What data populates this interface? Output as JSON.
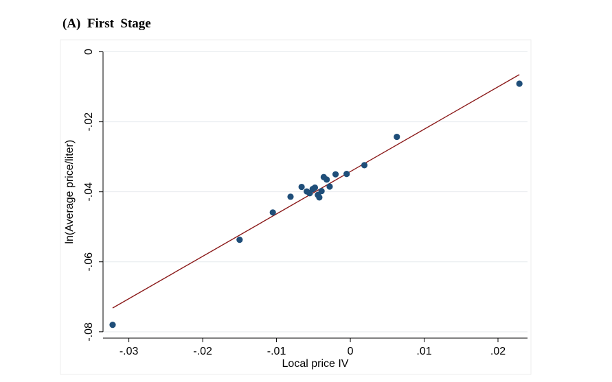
{
  "panel": {
    "title": "(A)  First  Stage"
  },
  "chart_data": {
    "type": "scatter",
    "title": "(A)  First  Stage",
    "xlabel": "Local price IV",
    "ylabel": "ln(Average price/liter)",
    "xlim": [
      -0.0335,
      0.024
    ],
    "ylim": [
      -0.0818,
      0.0005
    ],
    "xticks": [
      -0.03,
      -0.02,
      -0.01,
      0,
      0.01,
      0.02
    ],
    "xtick_labels": [
      "-.03",
      "-.02",
      "-.01",
      "0",
      ".01",
      ".02"
    ],
    "yticks": [
      0,
      -0.02,
      -0.04,
      -0.06,
      -0.08
    ],
    "ytick_labels": [
      "0",
      "-.02",
      "-.04",
      "-.06",
      "-.08"
    ],
    "grid": true,
    "series": [
      {
        "type": "scatter",
        "color": "#1f4e79",
        "x": [
          -0.0322,
          -0.015,
          -0.0105,
          -0.0081,
          -0.0066,
          -0.0059,
          -0.0055,
          -0.0051,
          -0.0048,
          -0.0044,
          -0.0042,
          -0.0039,
          -0.0036,
          -0.0032,
          -0.0028,
          -0.002,
          -0.0005,
          0.0019,
          0.0063,
          0.0229
        ],
        "y": [
          -0.078,
          -0.0537,
          -0.0459,
          -0.0414,
          -0.0386,
          -0.0399,
          -0.0404,
          -0.0392,
          -0.0388,
          -0.0409,
          -0.0416,
          -0.0398,
          -0.0358,
          -0.0365,
          -0.0385,
          -0.035,
          -0.0349,
          -0.0324,
          -0.0243,
          -0.0091
        ]
      },
      {
        "type": "line",
        "color": "#8b1a1a",
        "x": [
          -0.0322,
          0.0229
        ],
        "y": [
          -0.0732,
          -0.0065
        ]
      }
    ]
  }
}
